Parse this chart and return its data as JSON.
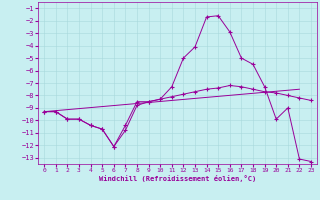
{
  "xlabel": "Windchill (Refroidissement éolien,°C)",
  "bg_color": "#c8eff1",
  "grid_color": "#a8d8dc",
  "line_color": "#990099",
  "xlim": [
    -0.5,
    23.5
  ],
  "ylim": [
    -13.5,
    -0.5
  ],
  "yticks": [
    -13,
    -12,
    -11,
    -10,
    -9,
    -8,
    -7,
    -6,
    -5,
    -4,
    -3,
    -2,
    -1
  ],
  "xticks": [
    0,
    1,
    2,
    3,
    4,
    5,
    6,
    7,
    8,
    9,
    10,
    11,
    12,
    13,
    14,
    15,
    16,
    17,
    18,
    19,
    20,
    21,
    22,
    23
  ],
  "line1_x": [
    0,
    1,
    2,
    3,
    4,
    5,
    6,
    7,
    8,
    9,
    10,
    11,
    12,
    13,
    14,
    15,
    16,
    17,
    18,
    19,
    20,
    21,
    22,
    23
  ],
  "line1_y": [
    -9.3,
    -9.3,
    -9.9,
    -9.9,
    -10.4,
    -10.7,
    -12.1,
    -10.4,
    -8.5,
    -8.5,
    -8.3,
    -7.3,
    -5.0,
    -4.1,
    -1.7,
    -1.6,
    -2.9,
    -5.0,
    -5.5,
    -7.3,
    -9.9,
    -9.0,
    -13.1,
    -13.3
  ],
  "line2_x": [
    0,
    1,
    2,
    3,
    4,
    5,
    6,
    7,
    8,
    9,
    10,
    11,
    12,
    13,
    14,
    15,
    16,
    17,
    18,
    19,
    20,
    21,
    22,
    23
  ],
  "line2_y": [
    -9.3,
    -9.3,
    -9.9,
    -9.9,
    -10.4,
    -10.7,
    -12.1,
    -10.8,
    -8.8,
    -8.5,
    -8.3,
    -8.1,
    -7.9,
    -7.7,
    -7.5,
    -7.4,
    -7.2,
    -7.3,
    -7.5,
    -7.7,
    -7.8,
    -8.0,
    -8.2,
    -8.4
  ],
  "line3_x": [
    0,
    22
  ],
  "line3_y": [
    -9.3,
    -7.5
  ]
}
